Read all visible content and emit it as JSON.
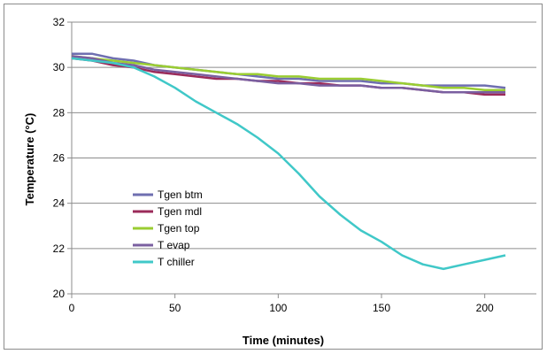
{
  "chart_data": {
    "type": "line",
    "title": "",
    "xlabel": "Time (minutes)",
    "ylabel": "Temperature (°C)",
    "xlim": [
      0,
      225
    ],
    "ylim": [
      20,
      32
    ],
    "xticks": [
      0,
      50,
      100,
      150,
      200
    ],
    "yticks": [
      20,
      22,
      24,
      26,
      28,
      30,
      32
    ],
    "grid": "horizontal",
    "legend_position": "left-middle",
    "series": [
      {
        "name": "Tgen btm",
        "color": "#6f6fb0",
        "x": [
          0,
          10,
          20,
          30,
          40,
          50,
          60,
          70,
          80,
          90,
          100,
          110,
          120,
          130,
          140,
          150,
          160,
          170,
          180,
          190,
          200,
          210
        ],
        "y": [
          30.6,
          30.6,
          30.4,
          30.3,
          30.1,
          30.0,
          29.9,
          29.8,
          29.7,
          29.6,
          29.5,
          29.5,
          29.4,
          29.4,
          29.4,
          29.3,
          29.3,
          29.2,
          29.2,
          29.2,
          29.2,
          29.1
        ]
      },
      {
        "name": "Tgen mdl",
        "color": "#9b2b5a",
        "x": [
          0,
          10,
          20,
          30,
          40,
          50,
          60,
          70,
          80,
          90,
          100,
          110,
          120,
          130,
          140,
          150,
          160,
          170,
          180,
          190,
          200,
          210
        ],
        "y": [
          30.4,
          30.3,
          30.1,
          30.0,
          29.8,
          29.7,
          29.6,
          29.5,
          29.5,
          29.4,
          29.4,
          29.3,
          29.3,
          29.2,
          29.2,
          29.1,
          29.1,
          29.0,
          28.9,
          28.9,
          28.8,
          28.8
        ]
      },
      {
        "name": "Tgen top",
        "color": "#9acd32",
        "x": [
          0,
          10,
          20,
          30,
          40,
          50,
          60,
          70,
          80,
          90,
          100,
          110,
          120,
          130,
          140,
          150,
          160,
          170,
          180,
          190,
          200,
          210
        ],
        "y": [
          30.5,
          30.4,
          30.3,
          30.2,
          30.1,
          30.0,
          29.9,
          29.8,
          29.7,
          29.7,
          29.6,
          29.6,
          29.5,
          29.5,
          29.5,
          29.4,
          29.3,
          29.2,
          29.1,
          29.1,
          29.0,
          29.0
        ]
      },
      {
        "name": "T evap",
        "color": "#7a5fa0",
        "x": [
          0,
          10,
          20,
          30,
          40,
          50,
          60,
          70,
          80,
          90,
          100,
          110,
          120,
          130,
          140,
          150,
          160,
          170,
          180,
          190,
          200,
          210
        ],
        "y": [
          30.5,
          30.4,
          30.2,
          30.1,
          29.9,
          29.8,
          29.7,
          29.6,
          29.5,
          29.4,
          29.3,
          29.3,
          29.2,
          29.2,
          29.2,
          29.1,
          29.1,
          29.0,
          28.9,
          28.9,
          28.9,
          28.9
        ]
      },
      {
        "name": "T chiller",
        "color": "#40c8c8",
        "x": [
          0,
          10,
          20,
          30,
          40,
          50,
          60,
          70,
          80,
          90,
          100,
          110,
          120,
          130,
          140,
          150,
          160,
          170,
          180,
          190,
          200,
          210
        ],
        "y": [
          30.4,
          30.3,
          30.2,
          30.0,
          29.6,
          29.1,
          28.5,
          28.0,
          27.5,
          26.9,
          26.2,
          25.3,
          24.3,
          23.5,
          22.8,
          22.3,
          21.7,
          21.3,
          21.1,
          21.3,
          21.5,
          21.7
        ]
      }
    ]
  }
}
